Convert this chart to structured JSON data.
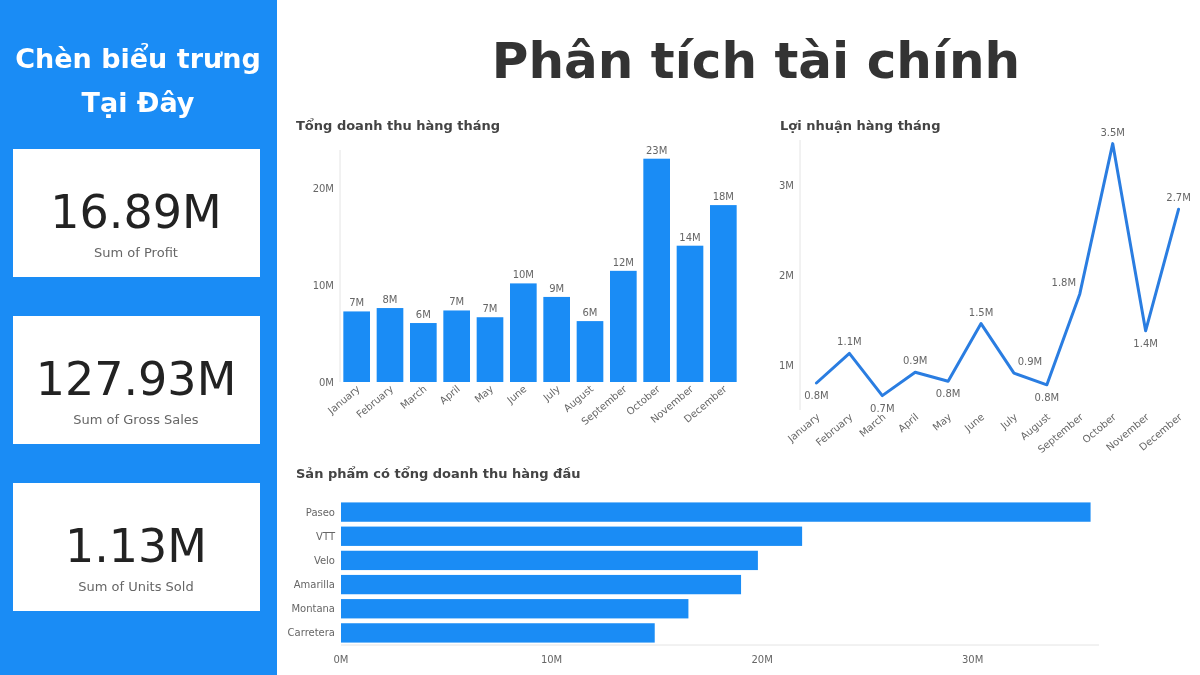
{
  "chart_data": [
    {
      "type": "other",
      "title": "Phân tích tài chính",
      "annotations": [
        "Chèn biểu trưng Tại Đây",
        "16.89M",
        "Sum of Profit",
        "127.93M",
        "Sum of Gross Sales",
        "1.13M",
        "Sum of Units Sold"
      ]
    },
    {
      "type": "bar",
      "title": "Tổng doanh thu hàng tháng",
      "categories": [
        "January",
        "February",
        "March",
        "April",
        "May",
        "June",
        "July",
        "August",
        "September",
        "October",
        "November",
        "December"
      ],
      "values": [
        7.3,
        7.65,
        6.1,
        7.4,
        6.7,
        10.2,
        8.8,
        6.3,
        11.5,
        23.1,
        14.1,
        18.3
      ],
      "value_labels": [
        "7M",
        "8M",
        "6M",
        "7M",
        "7M",
        "10M",
        "9M",
        "6M",
        "12M",
        "23M",
        "14M",
        "18M"
      ],
      "color": "#1a8cf5",
      "ylim": [
        0,
        24
      ],
      "yticks": [
        {
          "value": 0,
          "label": "0M"
        },
        {
          "value": 10,
          "label": "10M"
        },
        {
          "value": 20,
          "label": "20M"
        }
      ],
      "grid": false
    },
    {
      "type": "line",
      "title": "Lợi nhuận hàng tháng",
      "categories": [
        "January",
        "February",
        "March",
        "April",
        "May",
        "June",
        "July",
        "August",
        "September",
        "October",
        "November",
        "December"
      ],
      "values": [
        0.8,
        1.13,
        0.66,
        0.92,
        0.82,
        1.46,
        0.91,
        0.78,
        1.79,
        3.46,
        1.38,
        2.73
      ],
      "value_labels": [
        "0.8M",
        "1.1M",
        "0.7M",
        "0.9M",
        "0.8M",
        "1.5M",
        "0.9M",
        "0.8M",
        "1.8M",
        "3.5M",
        "1.4M",
        "2.7M"
      ],
      "color": "#2a7de1",
      "ylim": [
        0.5,
        3.5
      ],
      "yticks": [
        {
          "value": 1,
          "label": "1M"
        },
        {
          "value": 2,
          "label": "2M"
        },
        {
          "value": 3,
          "label": "3M"
        }
      ],
      "marker": "none",
      "line_style": "solid",
      "grid": false
    },
    {
      "type": "bar",
      "orientation": "horizontal",
      "title": "Sản phẩm có tổng doanh thu hàng đầu",
      "categories": [
        "Paseo",
        "VTT",
        "Velo",
        "Amarilla",
        "Montana",
        "Carretera"
      ],
      "values": [
        35.6,
        21.9,
        19.8,
        19.0,
        16.5,
        14.9
      ],
      "color": "#1a8cf5",
      "xlim": [
        0,
        36
      ],
      "xticks": [
        {
          "value": 0,
          "label": "0M"
        },
        {
          "value": 10,
          "label": "10M"
        },
        {
          "value": 20,
          "label": "20M"
        },
        {
          "value": 30,
          "label": "30M"
        }
      ],
      "grid": false
    }
  ]
}
